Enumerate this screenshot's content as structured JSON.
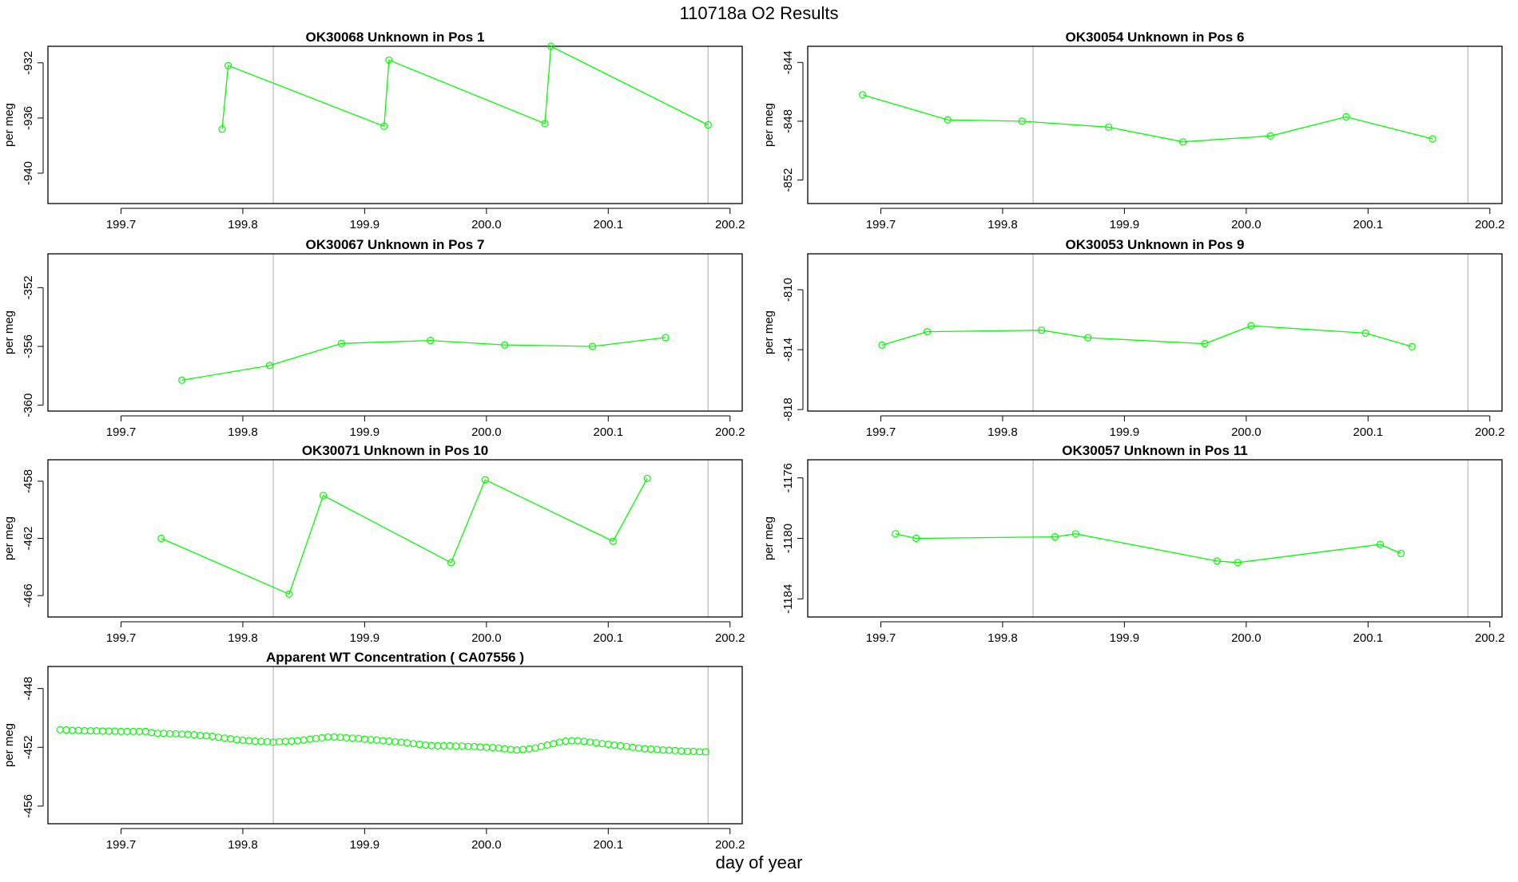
{
  "title": "110718a  O2 Results",
  "xlabel": "day of year",
  "series_color": "#00ff00",
  "axis_color": "#000000",
  "vline_color": "#bebebe",
  "chart_data": [
    {
      "type": "line",
      "title": "OK30068    Unknown in Pos 1",
      "xlabel": "",
      "ylabel": "per meg",
      "xlim": [
        199.64,
        200.21
      ],
      "ylim": [
        -942.2,
        -930.8
      ],
      "xticks": [
        199.7,
        199.8,
        199.9,
        200.0,
        200.1,
        200.2
      ],
      "xtick_labels": [
        "199.7",
        "199.8",
        "199.9",
        "200.0",
        "200.1",
        "200.2"
      ],
      "yticks": [
        -932,
        -936,
        -940
      ],
      "ytick_labels": [
        "-932",
        "-936",
        "-940"
      ],
      "vlines": [
        199.825,
        200.182
      ],
      "x": [
        199.783,
        199.788,
        199.916,
        199.92,
        200.048,
        200.053,
        200.182
      ],
      "y": [
        -936.8,
        -932.2,
        -936.6,
        -931.8,
        -936.4,
        -930.8,
        -936.5
      ]
    },
    {
      "type": "line",
      "title": "OK30054    Unknown in Pos 6",
      "xlabel": "",
      "ylabel": "per meg",
      "xlim": [
        199.64,
        200.21
      ],
      "ylim": [
        -853.6,
        -842.9
      ],
      "xticks": [
        199.7,
        199.8,
        199.9,
        200.0,
        200.1,
        200.2
      ],
      "xtick_labels": [
        "199.7",
        "199.8",
        "199.9",
        "200.0",
        "200.1",
        "200.2"
      ],
      "yticks": [
        -844,
        -848,
        -852
      ],
      "ytick_labels": [
        "-844",
        "-848",
        "-852"
      ],
      "vlines": [
        199.825,
        200.182
      ],
      "x": [
        199.685,
        199.755,
        199.816,
        199.887,
        199.948,
        200.02,
        200.082,
        200.153
      ],
      "y": [
        -846.2,
        -847.9,
        -848.0,
        -848.4,
        -849.4,
        -849.0,
        -847.7,
        -849.2
      ]
    },
    {
      "type": "line",
      "title": "OK30067    Unknown in Pos 7",
      "xlabel": "",
      "ylabel": "per meg",
      "xlim": [
        199.64,
        200.21
      ],
      "ylim": [
        -360.4,
        -349.7
      ],
      "xticks": [
        199.7,
        199.8,
        199.9,
        200.0,
        200.1,
        200.2
      ],
      "xtick_labels": [
        "199.7",
        "199.8",
        "199.9",
        "200.0",
        "200.1",
        "200.2"
      ],
      "yticks": [
        -352,
        -356,
        -360
      ],
      "ytick_labels": [
        "-352",
        "-356",
        "-360"
      ],
      "vlines": [
        199.825,
        200.182
      ],
      "x": [
        199.75,
        199.822,
        199.881,
        199.954,
        200.015,
        200.087,
        200.147
      ],
      "y": [
        -358.3,
        -357.3,
        -355.8,
        -355.6,
        -355.9,
        -356.0,
        -355.4
      ]
    },
    {
      "type": "line",
      "title": "OK30053    Unknown in Pos 9",
      "xlabel": "",
      "ylabel": "per meg",
      "xlim": [
        199.64,
        200.21
      ],
      "ylim": [
        -818.1,
        -807.6
      ],
      "xticks": [
        199.7,
        199.8,
        199.9,
        200.0,
        200.1,
        200.2
      ],
      "xtick_labels": [
        "199.7",
        "199.8",
        "199.9",
        "200.0",
        "200.1",
        "200.2"
      ],
      "yticks": [
        -810,
        -814,
        -818
      ],
      "ytick_labels": [
        "-810",
        "-814",
        "-818"
      ],
      "vlines": [
        199.825,
        200.182
      ],
      "x": [
        199.701,
        199.738,
        199.832,
        199.87,
        199.966,
        200.004,
        200.098,
        200.136
      ],
      "y": [
        -813.7,
        -812.8,
        -812.7,
        -813.2,
        -813.6,
        -812.4,
        -812.9,
        -813.8
      ]
    },
    {
      "type": "line",
      "title": "OK30071    Unknown in Pos 10",
      "xlabel": "",
      "ylabel": "per meg",
      "xlim": [
        199.64,
        200.21
      ],
      "ylim": [
        -467.5,
        -456.5
      ],
      "xticks": [
        199.7,
        199.8,
        199.9,
        200.0,
        200.1,
        200.2
      ],
      "xtick_labels": [
        "199.7",
        "199.8",
        "199.9",
        "200.0",
        "200.1",
        "200.2"
      ],
      "yticks": [
        -458,
        -462,
        -466
      ],
      "ytick_labels": [
        "-458",
        "-462",
        "-466"
      ],
      "vlines": [
        199.825,
        200.182
      ],
      "x": [
        199.733,
        199.838,
        199.866,
        199.971,
        199.999,
        200.104,
        200.132
      ],
      "y": [
        -462.0,
        -465.9,
        -459.0,
        -463.7,
        -457.9,
        -462.2,
        -457.8
      ]
    },
    {
      "type": "line",
      "title": "OK30057    Unknown in Pos 11",
      "xlabel": "",
      "ylabel": "per meg",
      "xlim": [
        199.64,
        200.21
      ],
      "ylim": [
        -1185.2,
        -1174.8
      ],
      "xticks": [
        199.7,
        199.8,
        199.9,
        200.0,
        200.1,
        200.2
      ],
      "xtick_labels": [
        "199.7",
        "199.8",
        "199.9",
        "200.0",
        "200.1",
        "200.2"
      ],
      "yticks": [
        -1176,
        -1180,
        -1184
      ],
      "ytick_labels": [
        "-1176",
        "-1180",
        "-1184"
      ],
      "vlines": [
        199.825,
        200.182
      ],
      "x": [
        199.712,
        199.729,
        199.843,
        199.86,
        199.976,
        199.993,
        200.11,
        200.127
      ],
      "y": [
        -1179.7,
        -1180.0,
        -1179.9,
        -1179.7,
        -1181.5,
        -1181.6,
        -1180.4,
        -1181.0
      ]
    },
    {
      "type": "scatter",
      "title": "Apparent WT Concentration ( CA07556 )",
      "xlabel": "",
      "ylabel": "per meg",
      "xlim": [
        199.64,
        200.21
      ],
      "ylim": [
        -457.2,
        -446.5
      ],
      "xticks": [
        199.7,
        199.8,
        199.9,
        200.0,
        200.1,
        200.2
      ],
      "xtick_labels": [
        "199.7",
        "199.8",
        "199.9",
        "200.0",
        "200.1",
        "200.2"
      ],
      "yticks": [
        -448,
        -452,
        -456
      ],
      "ytick_labels": [
        "-448",
        "-452",
        "-456"
      ],
      "vlines": [
        199.825,
        200.182
      ],
      "x": [
        199.65,
        199.655,
        199.66,
        199.665,
        199.67,
        199.675,
        199.68,
        199.685,
        199.69,
        199.695,
        199.7,
        199.705,
        199.71,
        199.715,
        199.72,
        199.725,
        199.73,
        199.735,
        199.74,
        199.745,
        199.75,
        199.755,
        199.76,
        199.765,
        199.77,
        199.775,
        199.78,
        199.785,
        199.79,
        199.795,
        199.8,
        199.805,
        199.81,
        199.815,
        199.82,
        199.825,
        199.83,
        199.835,
        199.84,
        199.845,
        199.85,
        199.855,
        199.86,
        199.865,
        199.87,
        199.875,
        199.88,
        199.885,
        199.89,
        199.895,
        199.9,
        199.905,
        199.91,
        199.915,
        199.92,
        199.925,
        199.93,
        199.935,
        199.94,
        199.945,
        199.95,
        199.955,
        199.96,
        199.965,
        199.97,
        199.975,
        199.98,
        199.985,
        199.99,
        199.995,
        200.0,
        200.005,
        200.01,
        200.015,
        200.02,
        200.025,
        200.03,
        200.035,
        200.04,
        200.045,
        200.05,
        200.055,
        200.06,
        200.065,
        200.07,
        200.075,
        200.08,
        200.085,
        200.09,
        200.095,
        200.1,
        200.105,
        200.11,
        200.115,
        200.12,
        200.125,
        200.13,
        200.135,
        200.14,
        200.145,
        200.15,
        200.155,
        200.16,
        200.165,
        200.17,
        200.175,
        200.18
      ],
      "y": [
        -450.8,
        -450.82,
        -450.85,
        -450.85,
        -450.87,
        -450.88,
        -450.88,
        -450.9,
        -450.9,
        -450.9,
        -450.92,
        -450.92,
        -450.92,
        -450.92,
        -450.92,
        -451.0,
        -451.05,
        -451.05,
        -451.08,
        -451.08,
        -451.1,
        -451.12,
        -451.15,
        -451.2,
        -451.22,
        -451.25,
        -451.32,
        -451.38,
        -451.42,
        -451.48,
        -451.52,
        -451.55,
        -451.58,
        -451.6,
        -451.62,
        -451.65,
        -451.62,
        -451.6,
        -451.58,
        -451.55,
        -451.5,
        -451.45,
        -451.4,
        -451.35,
        -451.3,
        -451.3,
        -451.32,
        -451.35,
        -451.38,
        -451.4,
        -451.45,
        -451.48,
        -451.5,
        -451.55,
        -451.58,
        -451.62,
        -451.65,
        -451.7,
        -451.75,
        -451.8,
        -451.85,
        -451.88,
        -451.9,
        -451.9,
        -451.9,
        -451.92,
        -451.92,
        -451.95,
        -451.95,
        -451.98,
        -452.0,
        -452.02,
        -452.05,
        -452.1,
        -452.15,
        -452.18,
        -452.15,
        -452.1,
        -452.05,
        -451.95,
        -451.85,
        -451.75,
        -451.65,
        -451.58,
        -451.55,
        -451.55,
        -451.6,
        -451.65,
        -451.7,
        -451.75,
        -451.8,
        -451.85,
        -451.9,
        -451.95,
        -452.0,
        -452.05,
        -452.1,
        -452.12,
        -452.15,
        -452.18,
        -452.2,
        -452.22,
        -452.25,
        -452.28,
        -452.28,
        -452.3,
        -452.3
      ]
    }
  ]
}
